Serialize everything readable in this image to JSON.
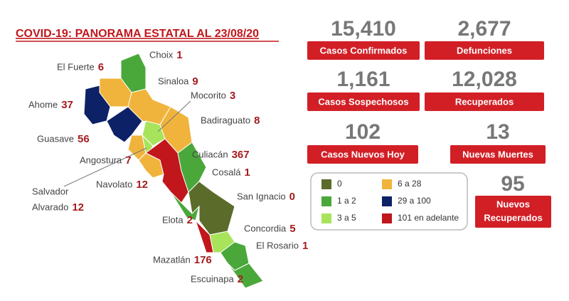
{
  "header": {
    "title": "COVID-19: PANORAMA ESTATAL AL 23/08/20"
  },
  "municipalities": [
    {
      "name": "Choix",
      "value": "1"
    },
    {
      "name": "El Fuerte",
      "value": "6"
    },
    {
      "name": "Sinaloa",
      "value": "9"
    },
    {
      "name": "Mocorito",
      "value": "3"
    },
    {
      "name": "Ahome",
      "value": "37"
    },
    {
      "name": "Badiraguato",
      "value": "8"
    },
    {
      "name": "Guasave",
      "value": "56"
    },
    {
      "name": "Culiacán",
      "value": "367"
    },
    {
      "name": "Angostura",
      "value": "7"
    },
    {
      "name": "Cosalá",
      "value": "1"
    },
    {
      "name": "Navolato",
      "value": "12"
    },
    {
      "name": "Salvador Alvarado",
      "name_lines": [
        "Salvador",
        "Alvarado"
      ],
      "value": "12"
    },
    {
      "name": "San Ignacio",
      "value": "0"
    },
    {
      "name": "Elota",
      "value": "2"
    },
    {
      "name": "Concordia",
      "value": "5"
    },
    {
      "name": "El Rosario",
      "value": "1"
    },
    {
      "name": "Mazatlán",
      "value": "176"
    },
    {
      "name": "Escuinapa",
      "value": "2"
    }
  ],
  "stats": [
    {
      "value": "15,410",
      "label": "Casos Confirmados"
    },
    {
      "value": "2,677",
      "label": "Defunciones"
    },
    {
      "value": "1,161",
      "label": "Casos Sospechosos"
    },
    {
      "value": "12,028",
      "label": "Recuperados"
    },
    {
      "value": "102",
      "label": "Casos Nuevos Hoy"
    },
    {
      "value": "13",
      "label": "Nuevas Muertes"
    },
    {
      "value": "95",
      "label_lines": [
        "Nuevos",
        "Recuperados"
      ]
    }
  ],
  "legend": [
    {
      "label": "0",
      "color": "#5b6b2a"
    },
    {
      "label": "1 a 2",
      "color": "#4aa83a"
    },
    {
      "label": "3 a 5",
      "color": "#a8e35c"
    },
    {
      "label": "6 a 28",
      "color": "#f0b43c"
    },
    {
      "label": "29 a 100",
      "color": "#0d2166"
    },
    {
      "label": "101 en adelante",
      "color": "#c0161c"
    }
  ]
}
